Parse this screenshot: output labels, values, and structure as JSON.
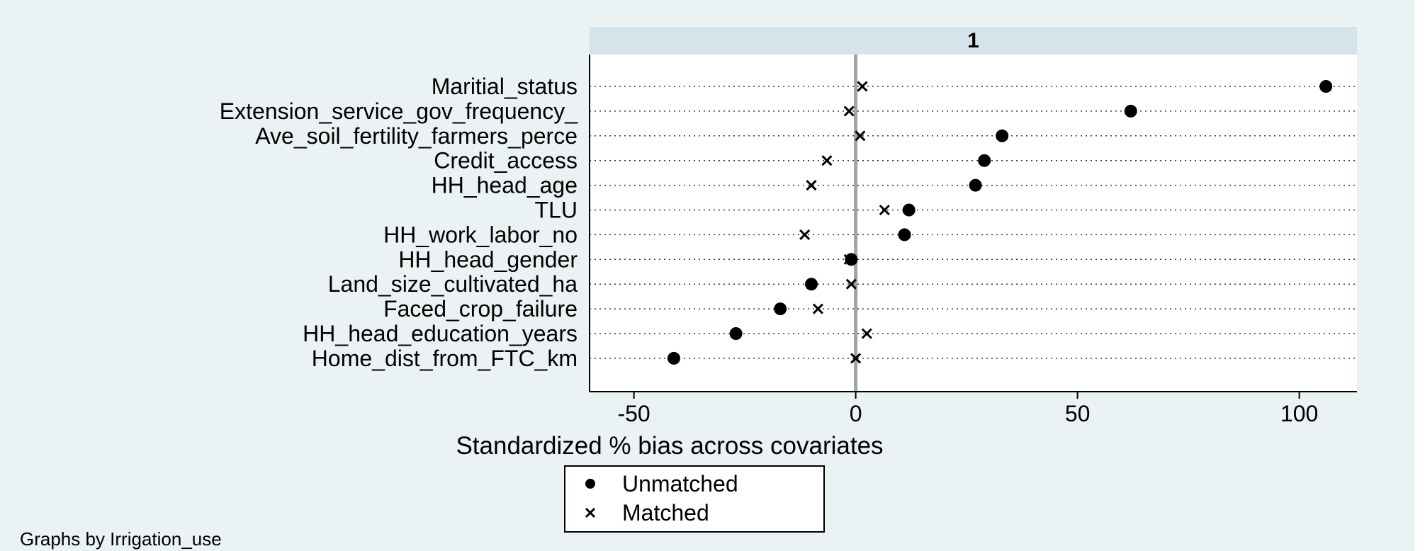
{
  "chart_data": {
    "type": "scatter",
    "panel_title": "1",
    "xlabel": "Standardized % bias across covariates",
    "xlim": [
      -60,
      113
    ],
    "xticks": [
      -50,
      0,
      50,
      100
    ],
    "grid": "dotted horizontal per covariate",
    "reference_line_x": 0,
    "legend_position": "bottom-center",
    "categories": [
      "Maritial_status",
      "Extension_service_gov_frequency_",
      "Ave_soil_fertility_farmers_perce",
      "Credit_access",
      "HH_head_age",
      "TLU",
      "HH_work_labor_no",
      "HH_head_gender",
      "Land_size_cultivated_ha",
      "Faced_crop_failure",
      "HH_head_education_years",
      "Home_dist_from_FTC_km"
    ],
    "series": [
      {
        "name": "Unmatched",
        "marker": "filled-circle",
        "values": [
          106,
          62,
          33,
          29,
          27,
          12,
          11,
          -1,
          -10,
          -17,
          -27,
          -41
        ]
      },
      {
        "name": "Matched",
        "marker": "x",
        "values": [
          1.5,
          -1.5,
          1,
          -6.5,
          -10,
          6.5,
          -11.5,
          -1.5,
          -1,
          -8.5,
          2.5,
          0
        ]
      }
    ],
    "note": "Graphs by Irrigation_use"
  },
  "colors": {
    "background": "#eaf2f3",
    "plot_area": "#ffffff",
    "strip": "#d5e3ea",
    "marker": "#000000",
    "reference_line": "#a3a3a3"
  }
}
